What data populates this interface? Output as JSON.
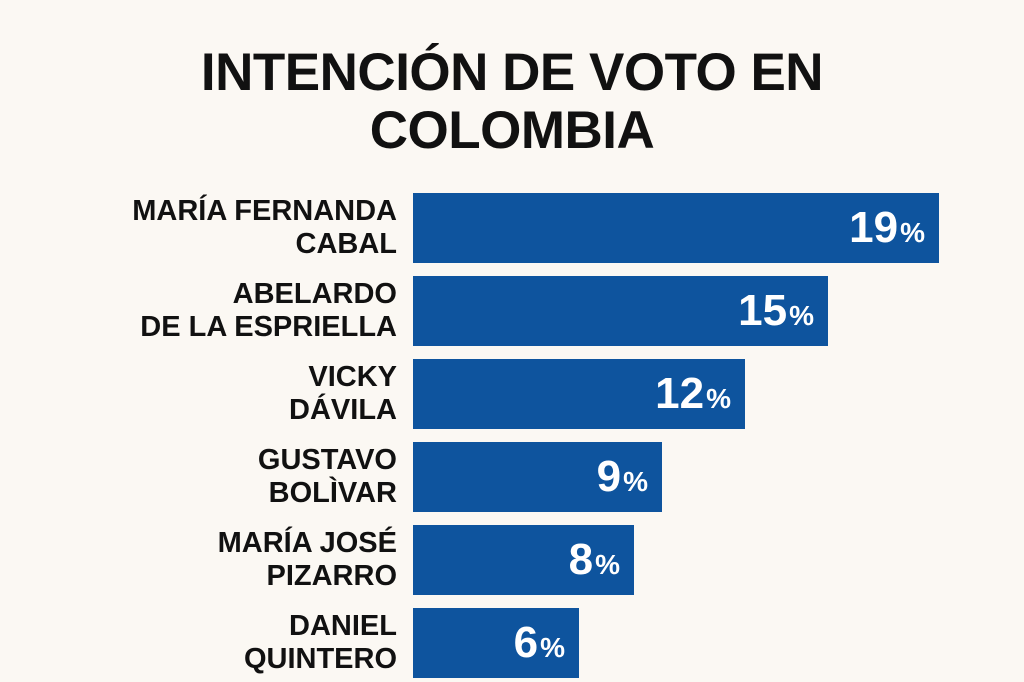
{
  "page": {
    "background": "#fbf8f3"
  },
  "chart_data": {
    "type": "bar",
    "orientation": "horizontal",
    "title": "INTENCIÓN DE VOTO EN COLOMBIA",
    "title_lines": [
      "INTENCIÓN DE VOTO EN",
      "COLOMBIA"
    ],
    "unit": "%",
    "categories": [
      "MARÍA FERNANDA CABAL",
      "ABELARDO DE LA ESPRIELLA",
      "VICKY DÁVILA",
      "GUSTAVO BOLÌVAR",
      "MARÍA JOSÉ PIZARRO",
      "DANIEL QUINTERO"
    ],
    "values": [
      19,
      15,
      12,
      9,
      8,
      6
    ],
    "xlim": [
      0,
      19
    ],
    "grid": false,
    "legend": false,
    "value_labels": [
      "19",
      "15",
      "12",
      "9",
      "8",
      "6"
    ],
    "colors": {
      "bar": "#0e549e",
      "value_text": "#ffffff",
      "label_text": "#111111",
      "title_text": "#111111"
    },
    "rows": [
      {
        "label_lines": [
          "MARÍA FERNANDA",
          "CABAL"
        ],
        "value": 19
      },
      {
        "label_lines": [
          "ABELARDO",
          "DE LA ESPRIELLA"
        ],
        "value": 15
      },
      {
        "label_lines": [
          "VICKY",
          "DÁVILA"
        ],
        "value": 12
      },
      {
        "label_lines": [
          "GUSTAVO",
          "BOLÌVAR"
        ],
        "value": 9
      },
      {
        "label_lines": [
          "MARÍA JOSÉ",
          "PIZARRO"
        ],
        "value": 8
      },
      {
        "label_lines": [
          "DANIEL",
          "QUINTERO"
        ],
        "value": 6
      }
    ]
  }
}
